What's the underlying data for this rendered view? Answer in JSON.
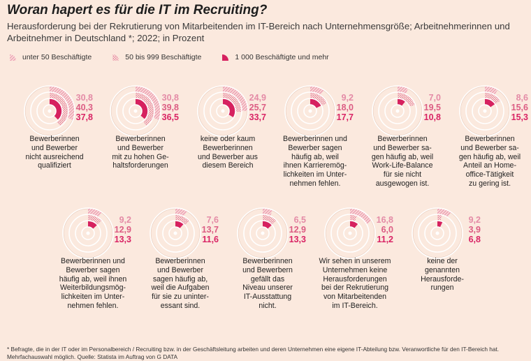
{
  "header": {
    "title": "Woran hapert es für die IT im Recruiting?",
    "subtitle": "Herausforderung bei der Rekrutierung von Mitarbeitenden im IT-Bereich nach Unternehmensgröße; Arbeitnehmerinnen und Arbeitnehmer in Deutschland *; 2022; in Prozent"
  },
  "legend": {
    "s1": "unter 50 Beschäftigte",
    "s2": "50 bis 999 Beschäftigte",
    "s3": "1 000 Beschäftigte und mehr"
  },
  "colors": {
    "s1": "#eea1b7",
    "s2": "#e16b8f",
    "s3": "#d6215f",
    "ring": "#ffffff",
    "bg": "#fbe9de"
  },
  "chart_data": {
    "type": "radial-bar",
    "unit": "Prozent",
    "series": [
      {
        "name": "unter 50 Beschäftigte",
        "values": [
          30.8,
          30.8,
          24.9,
          9.2,
          7.0,
          8.6,
          9.2,
          7.6,
          6.5,
          16.8,
          9.2
        ]
      },
      {
        "name": "50 bis 999 Beschäftigte",
        "values": [
          40.3,
          39.8,
          25.7,
          18.0,
          19.5,
          15.6,
          12.9,
          13.7,
          12.9,
          6.0,
          3.9
        ]
      },
      {
        "name": "1 000 Beschäftigte und mehr",
        "values": [
          37.8,
          36.5,
          33.7,
          17.7,
          10.8,
          15.3,
          13.3,
          11.6,
          13.3,
          11.2,
          6.8
        ]
      }
    ],
    "categories": [
      "Bewerberinnen und Bewerber nicht ausreichend qualifiziert",
      "Bewerberinnen und Bewerber mit zu hohen Gehaltsforderungen",
      "keine oder kaum Bewerberinnen und Bewerber aus diesem Bereich",
      "Bewerberinnen und Bewerber sagen häufig ab, weil ihnen Karrieremöglichkeiten im Unternehmen fehlen.",
      "Bewerberinnen und Bewerber sagen häufig ab, weil Work-Life-Balance für sie nicht ausgewogen ist.",
      "Bewerberinnen und Bewerber sagen häufig ab, weil Anteil an Homeoffice-Tätigkeit zu gering ist.",
      "Bewerberinnen und Bewerber sagen häufig ab, weil ihnen Weiterbildungsmöglichkeiten im Unternehmen fehlen.",
      "Bewerberinnen und Bewerber sagen häufig ab, weil die Aufgaben für sie zu uninteressant sind.",
      "Bewerberinnen und Bewerbern gefällt das Niveau unserer IT-Ausstattung nicht.",
      "Wir sehen in unserem Unternehmen keine Herausforderungen bei der Rekrutierung von Mitarbeitenden im IT-Bereich.",
      "keine der genannten Herausforderungen"
    ],
    "items": [
      {
        "values": [
          "30,8",
          "40,3",
          "37,8"
        ],
        "lines": [
          "Bewerberinnen",
          "und Bewerber",
          "nicht ausreichend",
          "qualifiziert"
        ]
      },
      {
        "values": [
          "30,8",
          "39,8",
          "36,5"
        ],
        "lines": [
          "Bewerberinnen",
          "und Bewerber",
          "mit zu hohen Ge-",
          "haltsforderungen"
        ]
      },
      {
        "values": [
          "24,9",
          "25,7",
          "33,7"
        ],
        "lines": [
          "keine oder kaum",
          "Bewerberinnen",
          "und Bewerber aus",
          "diesem Bereich"
        ]
      },
      {
        "values": [
          "9,2",
          "18,0",
          "17,7"
        ],
        "lines": [
          "Bewerberinnen und",
          "Bewerber sagen",
          "häufig ab, weil",
          "ihnen Karrieremög-",
          "lichkeiten im Unter-",
          "nehmen fehlen."
        ]
      },
      {
        "values": [
          "7,0",
          "19,5",
          "10,8"
        ],
        "lines": [
          "Bewerberinnen",
          "und Bewerber sa-",
          "gen häufig ab, weil",
          "Work-Life-Balance",
          "für sie nicht",
          "ausgewogen ist."
        ]
      },
      {
        "values": [
          "8,6",
          "15,6",
          "15,3"
        ],
        "lines": [
          "Bewerberinnen",
          "und Bewerber sa-",
          "gen häufig ab, weil",
          "Anteil an Home-",
          "office-Tätigkeit",
          "zu gering ist."
        ]
      },
      {
        "values": [
          "9,2",
          "12,9",
          "13,3"
        ],
        "lines": [
          "Bewerberinnen und",
          "Bewerber sagen",
          "häufig ab, weil ihnen",
          "Weiterbildungsmög-",
          "lichkeiten im Unter-",
          "nehmen fehlen."
        ]
      },
      {
        "values": [
          "7,6",
          "13,7",
          "11,6"
        ],
        "lines": [
          "Bewerberinnen",
          "und Bewerber",
          "sagen häufig ab,",
          "weil die Aufgaben",
          "für sie zu uninter-",
          "essant sind."
        ]
      },
      {
        "values": [
          "6,5",
          "12,9",
          "13,3"
        ],
        "lines": [
          "Bewerberinnen",
          "und Bewerbern",
          "gefällt das",
          "Niveau unserer",
          "IT-Ausstattung",
          "nicht."
        ]
      },
      {
        "values": [
          "16,8",
          "6,0",
          "11,2"
        ],
        "lines": [
          "Wir sehen in unserem",
          "Unternehmen keine",
          "Herausforderungen",
          "bei der Rekrutierung",
          "von Mitarbeitenden",
          "im IT-Bereich."
        ]
      },
      {
        "values": [
          "9,2",
          "3,9",
          "6,8"
        ],
        "lines": [
          "keine der",
          "genannten",
          "Herausforde-",
          "rungen"
        ]
      }
    ]
  },
  "footnote": "* Befragte, die in der IT oder im Personalbereich / Recruiting bzw. in der Geschäftsleitung arbeiten und deren Unternehmen eine eigene IT-Abteilung bzw. Veranwortliche für den IT-Bereich hat. Mehrfachauswahl möglich. Quelle: Statista im Auftrag von G DATA"
}
